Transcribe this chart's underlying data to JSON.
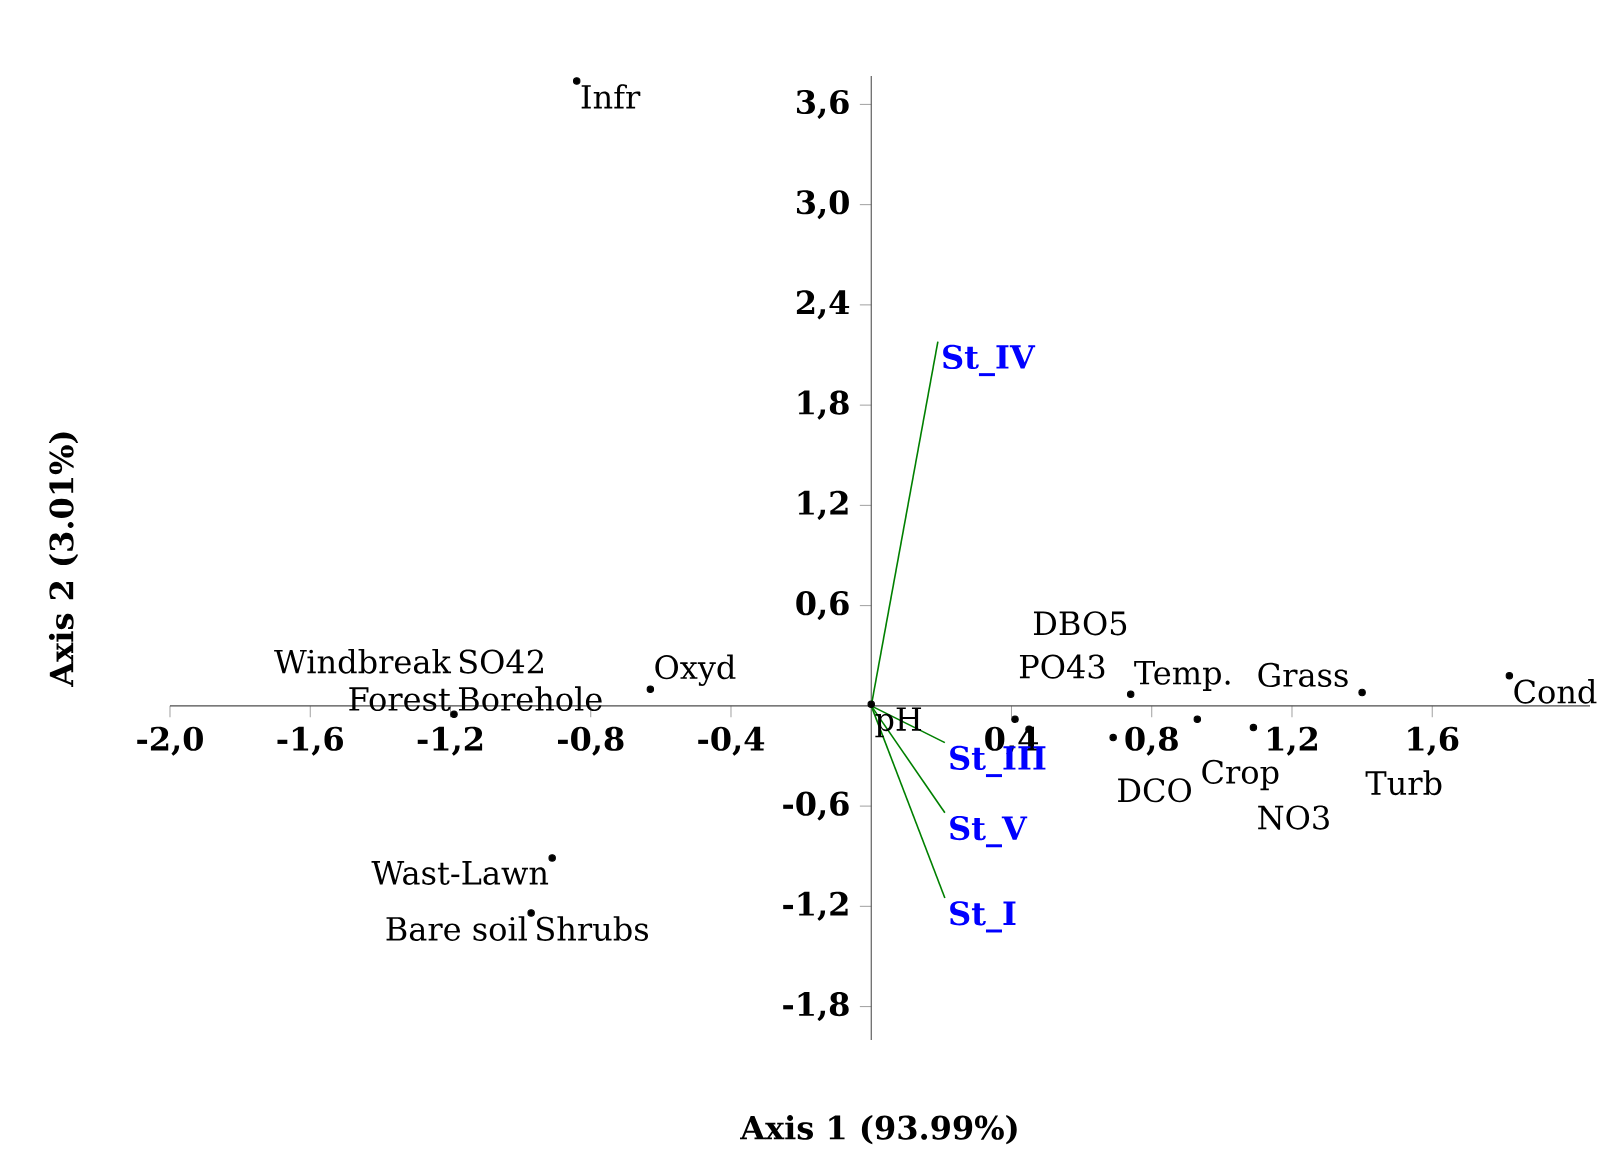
{
  "chart_data": {
    "type": "scatter",
    "xlabel": "Axis 1 (93.99%)",
    "ylabel": "Axis 2 (3.01%)",
    "xlim": [
      -2.0,
      2.05
    ],
    "ylim": [
      -2.0,
      3.77
    ],
    "xticks": [
      {
        "value": -2.0,
        "label": "-2,0"
      },
      {
        "value": -1.6,
        "label": "-1,6"
      },
      {
        "value": -1.2,
        "label": "-1,2"
      },
      {
        "value": -0.8,
        "label": "-0,8"
      },
      {
        "value": -0.4,
        "label": "-0,4"
      },
      {
        "value": 0.4,
        "label": "0,4"
      },
      {
        "value": 0.8,
        "label": "0,8"
      },
      {
        "value": 1.2,
        "label": "1,2"
      },
      {
        "value": 1.6,
        "label": "1,6"
      }
    ],
    "yticks": [
      {
        "value": -1.8,
        "label": "-1,8"
      },
      {
        "value": -1.2,
        "label": "-1,2"
      },
      {
        "value": -0.6,
        "label": "-0,6"
      },
      {
        "value": 0.6,
        "label": "0,6"
      },
      {
        "value": 1.2,
        "label": "1,2"
      },
      {
        "value": 1.8,
        "label": "1,8"
      },
      {
        "value": 2.4,
        "label": "2,4"
      },
      {
        "value": 3.0,
        "label": "3,0"
      },
      {
        "value": 3.6,
        "label": "3,6"
      }
    ],
    "grid": false,
    "legend": false,
    "series": [
      {
        "marker": "circle",
        "color": "#000000",
        "x": [
          -0.84,
          -0.63,
          -1.19,
          -0.91,
          -0.97,
          0.0,
          0.41,
          0.45,
          0.69,
          0.74,
          0.93,
          1.09,
          1.4,
          1.82
        ],
        "values": [
          3.74,
          0.1,
          -0.05,
          -0.91,
          -1.24,
          0.01,
          -0.08,
          -0.14,
          -0.19,
          0.07,
          -0.08,
          -0.13,
          0.08,
          0.18
        ]
      },
      {
        "type": "line",
        "marker": "none",
        "name": "St_IV",
        "color": "#008000",
        "x": [
          0,
          0.19
        ],
        "values": [
          0,
          2.18
        ]
      },
      {
        "type": "line",
        "marker": "none",
        "name": "St_III",
        "color": "#008000",
        "x": [
          0,
          0.21
        ],
        "values": [
          0,
          -0.22
        ]
      },
      {
        "type": "line",
        "marker": "none",
        "name": "St_V",
        "color": "#008000",
        "x": [
          0,
          0.21
        ],
        "values": [
          0,
          -0.64
        ]
      },
      {
        "type": "line",
        "marker": "none",
        "name": "St_I",
        "color": "#008000",
        "x": [
          0,
          0.21
        ],
        "values": [
          0,
          -1.15
        ]
      }
    ],
    "annotations": [
      {
        "text": "Infr",
        "x": -0.84,
        "y": 3.74
      },
      {
        "text": "Oxyd",
        "x": -0.63,
        "y": 0.1
      },
      {
        "text": "Borehole",
        "x": -1.19,
        "y": -0.05
      },
      {
        "text": "Forest",
        "x": -1.19,
        "y": -0.05
      },
      {
        "text": "Windbreak",
        "x": -1.19,
        "y": -0.05
      },
      {
        "text": "SO42",
        "x": -1.19,
        "y": -0.05
      },
      {
        "text": "Wast-Lawn",
        "x": -0.91,
        "y": -0.91
      },
      {
        "text": "Shrubs",
        "x": -0.97,
        "y": -1.24
      },
      {
        "text": "Bare soil",
        "x": -0.97,
        "y": -1.24
      },
      {
        "text": "pH",
        "x": 0.0,
        "y": 0.01
      },
      {
        "text": "PO43",
        "x": 0.41,
        "y": -0.08
      },
      {
        "text": "DBO5",
        "x": 0.45,
        "y": -0.14
      },
      {
        "text": "DCO",
        "x": 0.69,
        "y": -0.19
      },
      {
        "text": "Temp.",
        "x": 0.74,
        "y": 0.07
      },
      {
        "text": "Crop",
        "x": 0.93,
        "y": -0.08
      },
      {
        "text": "Grass",
        "x": 1.09,
        "y": -0.13
      },
      {
        "text": "NO3",
        "x": 1.09,
        "y": -0.13
      },
      {
        "text": "Turb",
        "x": 1.4,
        "y": 0.08
      },
      {
        "text": "Cond",
        "x": 1.82,
        "y": 0.18
      }
    ]
  }
}
